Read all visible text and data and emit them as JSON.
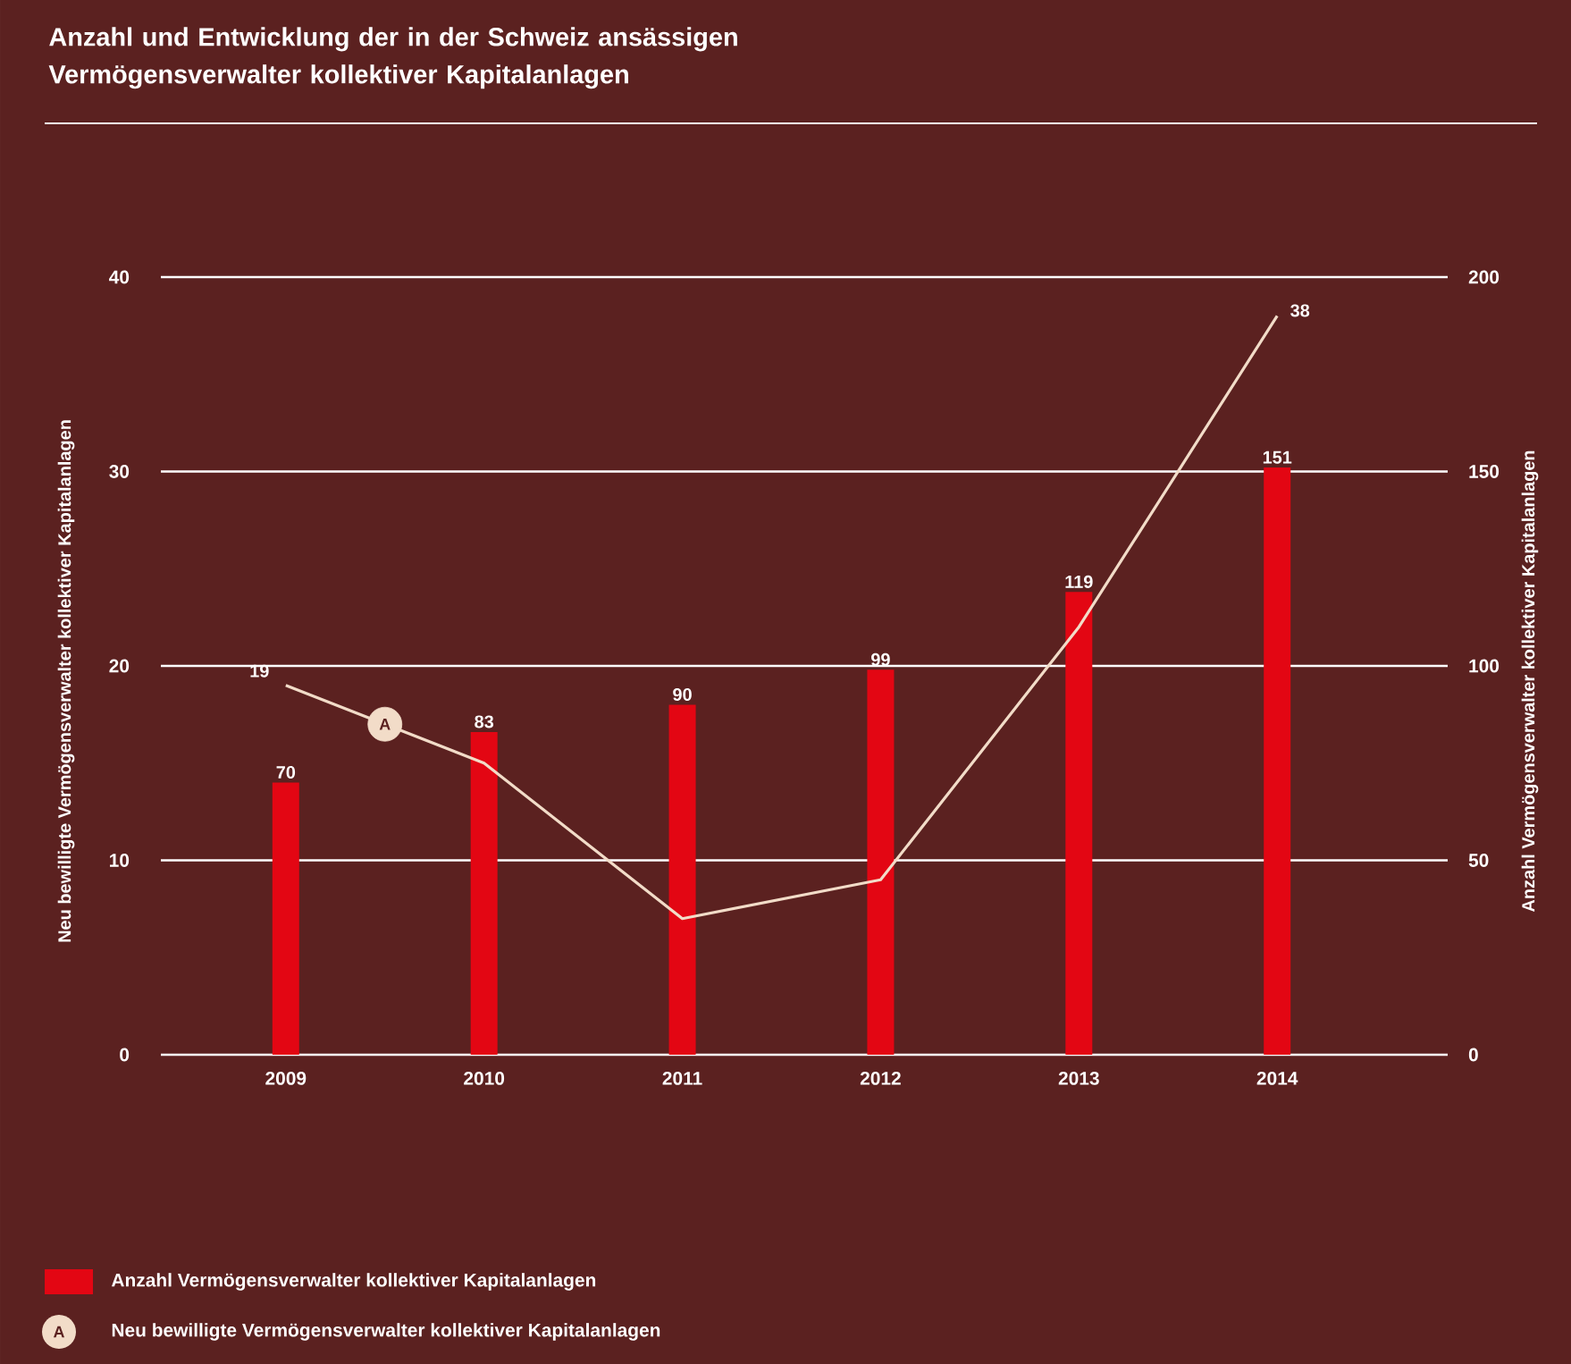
{
  "chart_data": {
    "type": "bar",
    "title": "Anzahl und Entwicklung der in der Schweiz ansässigen Vermögensverwalter kollektiver Kapitalanlagen",
    "ylabel": "Neu bewilligte Vermögensverwalter kollektiver Kapitalanlagen",
    "y2label": "Anzahl Vermögensverwalter kollektiver Kapitalanlagen",
    "categories": [
      "2009",
      "2010",
      "2011",
      "2012",
      "2013",
      "2014"
    ],
    "series": [
      {
        "name": "Anzahl Vermögensverwalter kollektiver Kapitalanlagen",
        "type": "bar",
        "axis": "y2",
        "color": "#e30613",
        "values": [
          70,
          83,
          90,
          99,
          119,
          151
        ],
        "value_labels": [
          "70",
          "83",
          "90",
          "99",
          "119",
          "151"
        ]
      },
      {
        "name": "Neu bewilligte Vermögensverwalter kollektiver Kapitalanlagen",
        "type": "line",
        "color": "#f2dcc8",
        "values": [
          19,
          15,
          7,
          9,
          22,
          38
        ],
        "value_labels": [
          "19",
          null,
          null,
          null,
          null,
          "38"
        ]
      }
    ],
    "ylim": [
      0,
      40
    ],
    "yticks": [
      0,
      10,
      20,
      30,
      40
    ],
    "y2lim": [
      0,
      200
    ],
    "y2ticks": [
      0,
      50,
      100,
      150,
      200
    ],
    "grid": "y",
    "legend": "bottom left",
    "marker": "none",
    "annotations": [
      "A"
    ]
  }
}
